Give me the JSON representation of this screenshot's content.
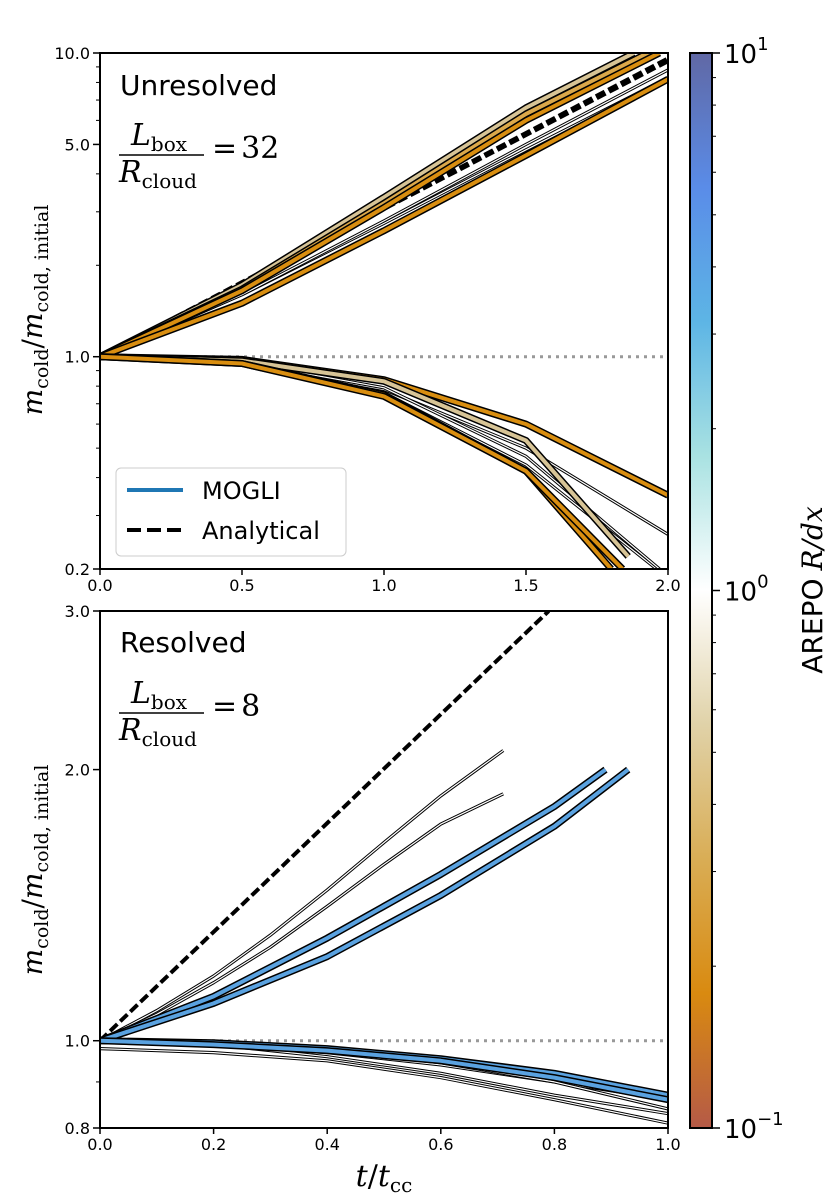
{
  "chart_data": [
    {
      "type": "line",
      "panel": "top",
      "annotation": "Unresolved",
      "ratio_value": "32",
      "ratio_equals": "=",
      "ratio_numerator": "L",
      "ratio_numerator_sub": "box",
      "ratio_denominator": "R",
      "ratio_denominator_sub": "cloud",
      "ylabel": "m",
      "ylabel_sub": "cold",
      "ylabel_slash": "/",
      "ylabel_den": "m",
      "ylabel_den_sub": "cold, initial",
      "xlim": [
        0,
        2
      ],
      "ylim": [
        0.2,
        10
      ],
      "yscale": "log",
      "x_ticks": [
        "0.0",
        "0.5",
        "1.0",
        "1.5",
        "2.0"
      ],
      "x_tick_values": [
        0,
        0.5,
        1.0,
        1.5,
        2.0
      ],
      "y_ticks": [
        "0.2",
        "1.0",
        "5.0",
        "10.0"
      ],
      "y_tick_values": [
        0.2,
        1.0,
        5.0,
        10.0
      ],
      "legend": {
        "position": "lower-left",
        "entries": [
          {
            "label": "MOGLI",
            "style": "solid",
            "color": "#1f77b4"
          },
          {
            "label": "Analytical",
            "style": "dashed",
            "color": "#000000"
          }
        ]
      },
      "reference_line": {
        "y": 1.0,
        "style": "dotted",
        "color": "#999999"
      },
      "analytical": [
        {
          "x": [
            0,
            2.0
          ],
          "y": [
            1.0,
            9.4
          ]
        },
        {
          "x": [
            0,
            2.0
          ],
          "y": [
            1.0,
            9.6
          ]
        }
      ],
      "arepo": [
        {
          "x": [
            0,
            0.5,
            1.0,
            1.5,
            2.0
          ],
          "y": [
            1.0,
            1.6,
            2.75,
            4.8,
            8.3
          ]
        },
        {
          "x": [
            0,
            0.5,
            1.0,
            1.5,
            2.0
          ],
          "y": [
            1.0,
            1.6,
            2.8,
            5.0,
            8.8
          ]
        },
        {
          "x": [
            0,
            0.5,
            1.0,
            1.5,
            2.0
          ],
          "y": [
            1.0,
            0.95,
            0.78,
            0.5,
            0.26
          ]
        },
        {
          "x": [
            0,
            0.5,
            1.0,
            1.5,
            1.96
          ],
          "y": [
            1.0,
            0.96,
            0.76,
            0.44,
            0.2
          ]
        },
        {
          "x": [
            0,
            0.5,
            1.0,
            1.5,
            1.97
          ],
          "y": [
            1.0,
            0.96,
            0.79,
            0.47,
            0.2
          ]
        }
      ],
      "mogli": [
        {
          "x": [
            0,
            0.5,
            1.0,
            1.5,
            1.88
          ],
          "y": [
            1.0,
            1.72,
            3.35,
            6.6,
            10.0
          ],
          "color": "#d7c496"
        },
        {
          "x": [
            0,
            0.5,
            1.0,
            1.5,
            1.93
          ],
          "y": [
            1.0,
            1.67,
            3.2,
            6.3,
            10.0
          ],
          "color": "#dba84a"
        },
        {
          "x": [
            0,
            0.5,
            1.0,
            1.5,
            1.97
          ],
          "y": [
            1.0,
            1.65,
            3.1,
            6.0,
            10.0
          ],
          "color": "#d98e10"
        },
        {
          "x": [
            0,
            0.5,
            1.0,
            1.5,
            2.0
          ],
          "y": [
            1.0,
            1.5,
            2.6,
            4.6,
            8.2
          ],
          "color": "#d98e10"
        },
        {
          "x": [
            0,
            0.5,
            1.0,
            1.5,
            2.0
          ],
          "y": [
            1.0,
            0.98,
            0.84,
            0.6,
            0.35
          ],
          "color": "#d98e10"
        },
        {
          "x": [
            0,
            0.5,
            1.0,
            1.5,
            1.86
          ],
          "y": [
            1.0,
            0.97,
            0.83,
            0.53,
            0.22
          ],
          "color": "#d7c496"
        },
        {
          "x": [
            0,
            0.5,
            1.0,
            1.5,
            1.8
          ],
          "y": [
            1.0,
            0.95,
            0.75,
            0.42,
            0.2
          ],
          "color": "#d98e10"
        },
        {
          "x": [
            0,
            0.5,
            1.0,
            1.5,
            1.84
          ],
          "y": [
            1.0,
            0.95,
            0.74,
            0.42,
            0.2
          ],
          "color": "#d98e10"
        }
      ]
    },
    {
      "type": "line",
      "panel": "bottom",
      "annotation": "Resolved",
      "ratio_value": "8",
      "ratio_equals": "=",
      "ratio_numerator": "L",
      "ratio_numerator_sub": "box",
      "ratio_denominator": "R",
      "ratio_denominator_sub": "cloud",
      "ylabel": "m",
      "ylabel_sub": "cold",
      "ylabel_slash": "/",
      "ylabel_den": "m",
      "ylabel_den_sub": "cold, initial",
      "xlabel": "t",
      "xlabel_slash": "/",
      "xlabel_den": "t",
      "xlabel_den_sub": "cc",
      "xlim": [
        0,
        1
      ],
      "ylim": [
        0.8,
        3.0
      ],
      "yscale": "log",
      "x_ticks": [
        "0.0",
        "0.2",
        "0.4",
        "0.6",
        "0.8",
        "1.0"
      ],
      "x_tick_values": [
        0,
        0.2,
        0.4,
        0.6,
        0.8,
        1.0
      ],
      "y_ticks": [
        "0.8",
        "1.0",
        "2.0",
        "3.0"
      ],
      "y_tick_values": [
        0.8,
        1.0,
        2.0,
        3.0
      ],
      "reference_line": {
        "y": 1.0,
        "style": "dotted",
        "color": "#999999"
      },
      "analytical": [
        {
          "x": [
            0,
            0.79
          ],
          "y": [
            1.0,
            3.0
          ]
        }
      ],
      "arepo": [
        {
          "x": [
            0,
            0.1,
            0.2,
            0.3,
            0.4,
            0.5,
            0.6,
            0.71
          ],
          "y": [
            1.0,
            1.08,
            1.18,
            1.31,
            1.47,
            1.66,
            1.87,
            2.1
          ]
        },
        {
          "x": [
            0,
            0.1,
            0.2,
            0.3,
            0.4,
            0.5,
            0.6,
            0.71
          ],
          "y": [
            1.0,
            1.07,
            1.16,
            1.27,
            1.41,
            1.57,
            1.74,
            1.88
          ]
        },
        {
          "x": [
            0,
            0.2,
            0.4,
            0.6,
            0.8,
            1.0
          ],
          "y": [
            1.0,
            0.99,
            0.97,
            0.94,
            0.9,
            0.86
          ]
        },
        {
          "x": [
            0,
            0.2,
            0.4,
            0.6,
            0.8,
            1.0
          ],
          "y": [
            1.0,
            0.995,
            0.975,
            0.945,
            0.9,
            0.84
          ]
        },
        {
          "x": [
            0,
            0.2,
            0.4,
            0.6,
            0.8,
            1.0
          ],
          "y": [
            1.0,
            0.99,
            0.96,
            0.92,
            0.87,
            0.83
          ]
        },
        {
          "x": [
            0,
            0.2,
            0.4,
            0.6,
            0.8,
            1.0
          ],
          "y": [
            0.98,
            0.97,
            0.95,
            0.91,
            0.86,
            0.81
          ]
        }
      ],
      "mogli": [
        {
          "x": [
            0,
            0.2,
            0.4,
            0.6,
            0.8,
            0.89
          ],
          "y": [
            1.0,
            1.12,
            1.3,
            1.53,
            1.82,
            2.0
          ],
          "color": "#5aa2e0"
        },
        {
          "x": [
            0,
            0.2,
            0.4,
            0.6,
            0.8,
            0.93
          ],
          "y": [
            1.0,
            1.1,
            1.24,
            1.45,
            1.73,
            2.0
          ],
          "color": "#5aa2e0"
        },
        {
          "x": [
            0,
            0.2,
            0.4,
            0.6,
            0.8,
            1.0
          ],
          "y": [
            1.0,
            0.995,
            0.98,
            0.955,
            0.92,
            0.87
          ],
          "color": "#5aa2e0"
        },
        {
          "x": [
            0,
            0.2,
            0.4,
            0.6,
            0.8,
            1.0
          ],
          "y": [
            1.0,
            0.99,
            0.975,
            0.95,
            0.91,
            0.86
          ],
          "color": "#5aa2e0"
        }
      ]
    }
  ],
  "colorbar": {
    "label": "AREPO",
    "label_math": "R/dx",
    "scale": "log",
    "range": [
      0.1,
      10
    ],
    "ticks": [
      {
        "base": "10",
        "exp": "1",
        "value": 10
      },
      {
        "base": "10",
        "exp": "0",
        "value": 1
      },
      {
        "base": "10",
        "exp": "−1",
        "value": 0.1
      }
    ],
    "stops": [
      "#b55a47",
      "#d98a10",
      "#d9ad55",
      "#e0d2a8",
      "#ffffff",
      "#a9e2e2",
      "#5db5e5",
      "#5a8ce8",
      "#6068a5"
    ]
  }
}
